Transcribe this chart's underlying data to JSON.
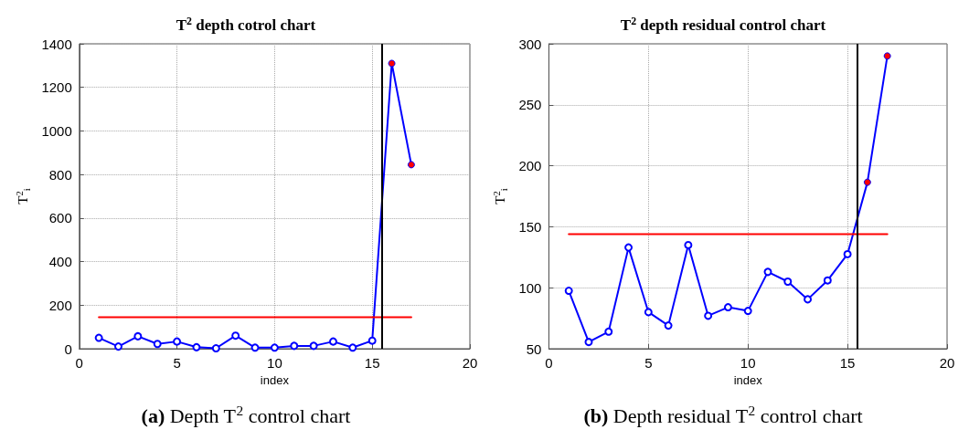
{
  "chart_data": [
    {
      "type": "line",
      "title": "T$^{2}$ depth cotrol chart",
      "xlabel": "index",
      "ylabel": "T$^{2}$$_{i}$",
      "annotations": [
        "(a) Depth T$^{2}$ control chart"
      ],
      "x": [
        1,
        2,
        3,
        4,
        5,
        6,
        7,
        8,
        9,
        10,
        11,
        12,
        13,
        14,
        15,
        16,
        17
      ],
      "xlim": [
        0,
        20
      ],
      "xticks": [
        0,
        5,
        10,
        15,
        20
      ],
      "ylim": [
        0,
        1400
      ],
      "yticks": [
        0,
        200,
        400,
        600,
        800,
        1000,
        1200,
        1400
      ],
      "grid": true,
      "marker": "circle",
      "line_style": "solid",
      "series": [
        {
          "color": "#0000ff",
          "colors": [
            "#0000ff",
            "#0000ff",
            "#0000ff",
            "#0000ff",
            "#0000ff",
            "#0000ff",
            "#0000ff",
            "#0000ff",
            "#0000ff",
            "#0000ff",
            "#0000ff",
            "#0000ff",
            "#0000ff",
            "#0000ff",
            "#0000ff",
            "#ff0000",
            "#ff0000"
          ],
          "values": [
            50,
            10,
            57,
            22,
            33,
            7,
            2,
            60,
            5,
            5,
            13,
            13,
            33,
            5,
            37,
            1310,
            845
          ]
        },
        {
          "type": "line",
          "color": "#ff0000",
          "marker": "none",
          "values": [
            145,
            145,
            145,
            145,
            145,
            145,
            145,
            145,
            145,
            145,
            145,
            145,
            145,
            145,
            145,
            145,
            145
          ]
        }
      ],
      "ref_lines": [
        {
          "axis": "x",
          "value": 15.5,
          "color": "#000000"
        }
      ]
    },
    {
      "type": "line",
      "title": "T$^{2}$ depth residual control chart",
      "xlabel": "index",
      "ylabel": "T$^{2}$$_{i}$",
      "annotations": [
        "(b) Depth residual T$^{2}$ control chart"
      ],
      "x": [
        1,
        2,
        3,
        4,
        5,
        6,
        7,
        8,
        9,
        10,
        11,
        12,
        13,
        14,
        15,
        16,
        17
      ],
      "xlim": [
        0,
        20
      ],
      "xticks": [
        0,
        5,
        10,
        15,
        20
      ],
      "ylim": [
        50,
        300
      ],
      "yticks": [
        50,
        100,
        150,
        200,
        250,
        300
      ],
      "grid": true,
      "marker": "circle",
      "line_style": "solid",
      "series": [
        {
          "color": "#0000ff",
          "colors": [
            "#0000ff",
            "#0000ff",
            "#0000ff",
            "#0000ff",
            "#0000ff",
            "#0000ff",
            "#0000ff",
            "#0000ff",
            "#0000ff",
            "#0000ff",
            "#0000ff",
            "#0000ff",
            "#0000ff",
            "#0000ff",
            "#0000ff",
            "#ff0000",
            "#ff0000"
          ],
          "values": [
            97.5,
            55.5,
            64,
            133,
            80,
            69,
            135,
            77,
            84,
            81,
            113,
            105,
            90.5,
            106,
            127.5,
            186.5,
            290
          ]
        },
        {
          "type": "line",
          "color": "#ff0000",
          "marker": "none",
          "values": [
            144,
            144,
            144,
            144,
            144,
            144,
            144,
            144,
            144,
            144,
            144,
            144,
            144,
            144,
            144,
            144,
            144
          ]
        }
      ],
      "ref_lines": [
        {
          "axis": "x",
          "value": 15.5,
          "color": "#000000"
        }
      ]
    }
  ]
}
